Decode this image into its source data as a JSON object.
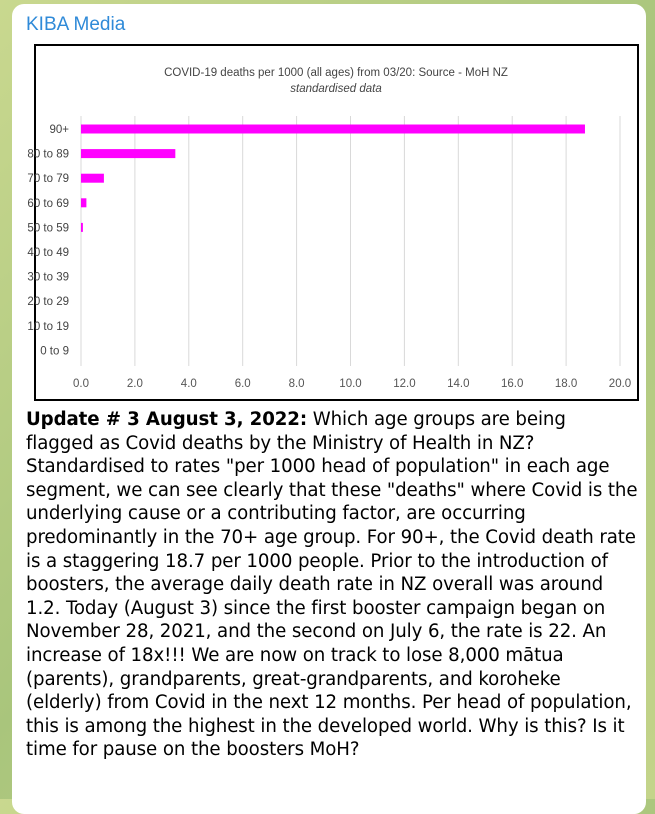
{
  "channel": {
    "name": "KIBA Media"
  },
  "message": {
    "headline": "Update # 3 August 3, 2022:",
    "body": " Which age groups are being flagged as Covid deaths by the Ministry of Health in NZ? Standardised to rates \"per 1000 head of population\" in each age segment, we can see clearly that these \"deaths\" where Covid is the underlying cause or a contributing factor, are occurring predominantly in the 70+ age group. For 90+, the Covid death rate is a staggering 18.7 per 1000 people. Prior to the introduction of boosters, the average daily death rate in NZ overall was around 1.2. Today (August 3) since the first booster campaign began on November 28, 2021, and the second on July 6, the rate is 22. An increase of 18x!!! We are now on track to lose 8,000 mātua (parents), grandparents, great-grandparents, and koroheke (elderly) from Covid in the next 12 months. Per head of population, this is among the highest in the developed world. Why is this? Is it time for pause on the boosters MoH?"
  },
  "chart_data": {
    "type": "bar",
    "orientation": "horizontal",
    "title": "COVID-19 deaths per 1000 (all ages) from 03/20: Source - MoH NZ",
    "subtitle": "standardised data",
    "categories": [
      "90+",
      "80 to 89",
      "70 to 79",
      "60 to 69",
      "50 to 59",
      "40 to 49",
      "30 to 39",
      "20 to 29",
      "10 to 19",
      "0 to 9"
    ],
    "values": [
      18.7,
      3.5,
      0.85,
      0.2,
      0.07,
      0,
      0,
      0,
      0,
      0
    ],
    "xlim": [
      0,
      20
    ],
    "xticks": [
      "0.0",
      "2.0",
      "4.0",
      "6.0",
      "8.0",
      "10.0",
      "12.0",
      "14.0",
      "16.0",
      "18.0",
      "20.0"
    ],
    "grid": true,
    "bar_color": "#ff00ff"
  }
}
